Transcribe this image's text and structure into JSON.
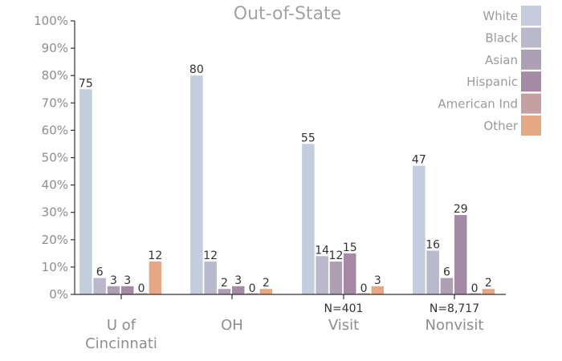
{
  "chart_data": {
    "type": "bar",
    "title": "Out-of-State",
    "categories": [
      {
        "label_lines": [
          "U of",
          "Cincinnati"
        ],
        "note": ""
      },
      {
        "label_lines": [
          "OH"
        ],
        "note": ""
      },
      {
        "label_lines": [
          "Visit"
        ],
        "note": "N=401"
      },
      {
        "label_lines": [
          "Nonvisit"
        ],
        "note": "N=8,717"
      }
    ],
    "series": [
      {
        "name": "White",
        "color": "#c3cddd",
        "values": [
          75,
          80,
          55,
          47
        ]
      },
      {
        "name": "Black",
        "color": "#b9b9cb",
        "values": [
          6,
          12,
          14,
          16
        ]
      },
      {
        "name": "Asian",
        "color": "#ae9fb5",
        "values": [
          3,
          2,
          12,
          6
        ]
      },
      {
        "name": "Hispanic",
        "color": "#a48aa4",
        "values": [
          3,
          3,
          15,
          29
        ]
      },
      {
        "name": "American Ind",
        "color": "#c4a0a0",
        "values": [
          0,
          0,
          0,
          0
        ]
      },
      {
        "name": "Other",
        "color": "#e6a884",
        "values": [
          12,
          2,
          3,
          2
        ]
      }
    ],
    "y_ticks": [
      "0%",
      "10%",
      "20%",
      "30%",
      "40%",
      "50%",
      "60%",
      "70%",
      "80%",
      "90%",
      "100%"
    ],
    "ylim": [
      0,
      100
    ],
    "grid": false,
    "legend": "top-right"
  }
}
